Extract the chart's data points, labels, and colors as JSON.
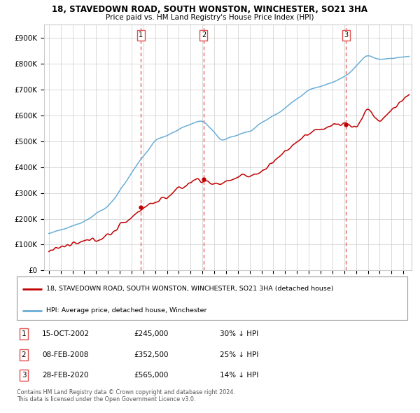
{
  "title": "18, STAVEDOWN ROAD, SOUTH WONSTON, WINCHESTER, SO21 3HA",
  "subtitle": "Price paid vs. HM Land Registry's House Price Index (HPI)",
  "ylim": [
    0,
    950000
  ],
  "yticks": [
    0,
    100000,
    200000,
    300000,
    400000,
    500000,
    600000,
    700000,
    800000,
    900000
  ],
  "ytick_labels": [
    "£0",
    "£100K",
    "£200K",
    "£300K",
    "£400K",
    "£500K",
    "£600K",
    "£700K",
    "£800K",
    "£900K"
  ],
  "sale_prices": [
    245000,
    352500,
    565000
  ],
  "sale_years": [
    2002.79,
    2008.1,
    2020.15
  ],
  "sale_labels": [
    "1",
    "2",
    "3"
  ],
  "hpi_color": "#6aaed6",
  "price_color": "#c00000",
  "vline_color": "#e05050",
  "background_color": "#ffffff",
  "grid_color": "#cccccc",
  "legend_entries": [
    "18, STAVEDOWN ROAD, SOUTH WONSTON, WINCHESTER, SO21 3HA (detached house)",
    "HPI: Average price, detached house, Winchester"
  ],
  "table_entries": [
    {
      "num": "1",
      "date": "15-OCT-2002",
      "price": "£245,000",
      "hpi": "30% ↓ HPI"
    },
    {
      "num": "2",
      "date": "08-FEB-2008",
      "price": "£352,500",
      "hpi": "25% ↓ HPI"
    },
    {
      "num": "3",
      "date": "28-FEB-2020",
      "price": "£565,000",
      "hpi": "14% ↓ HPI"
    }
  ],
  "footer": "Contains HM Land Registry data © Crown copyright and database right 2024.\nThis data is licensed under the Open Government Licence v3.0."
}
